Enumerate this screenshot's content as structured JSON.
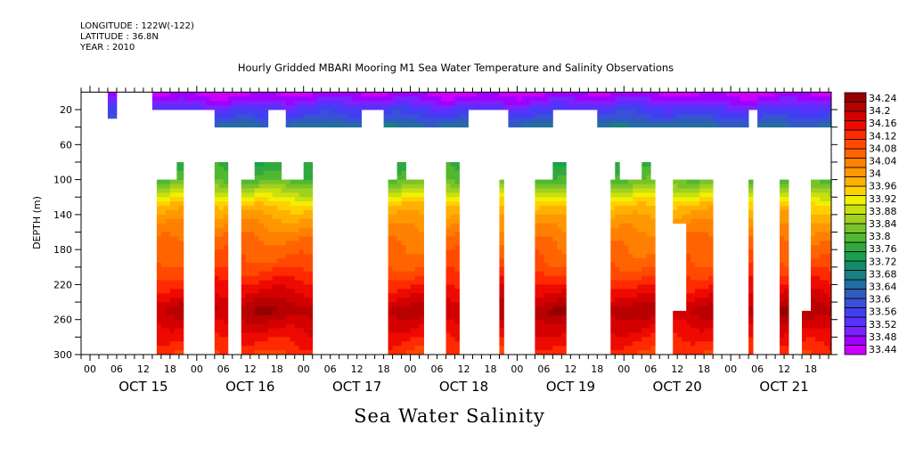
{
  "header": {
    "longitude": "LONGITUDE : 122W(-122)",
    "latitude": "LATITUDE : 36.8N",
    "year": "YEAR : 2010"
  },
  "chart_data": {
    "type": "heatmap",
    "title": "Hourly Gridded MBARI Mooring M1 Sea Water Temperature and Salinity Observations",
    "bottom_title": "Sea Water Salinity",
    "ylabel": "DEPTH (m)",
    "xlabel": "",
    "y_axis": {
      "range": [
        0,
        300
      ],
      "inverted": true,
      "ticks": [
        20,
        60,
        100,
        140,
        180,
        220,
        260,
        300
      ],
      "minor_ticks": [
        40,
        80,
        120,
        160,
        200,
        240,
        280
      ]
    },
    "x_axis": {
      "range_hours": [
        -2,
        166.6
      ],
      "start": "OCT 15 00",
      "hour_ticks": [
        "00",
        "06",
        "12",
        "18",
        "00",
        "06",
        "12",
        "18",
        "00",
        "06",
        "12",
        "18",
        "00",
        "06",
        "12",
        "18",
        "00",
        "06",
        "12",
        "18",
        "00",
        "06",
        "12",
        "18",
        "00",
        "06",
        "12",
        "18"
      ],
      "day_labels": [
        "OCT 15",
        "OCT 16",
        "OCT 17",
        "OCT 18",
        "OCT 19",
        "OCT 20",
        "OCT 21"
      ]
    },
    "colorbar": {
      "levels": [
        33.44,
        33.48,
        33.52,
        33.56,
        33.6,
        33.64,
        33.68,
        33.72,
        33.76,
        33.8,
        33.84,
        33.88,
        33.92,
        33.96,
        34,
        34.04,
        34.08,
        34.12,
        34.16,
        34.2,
        34.24
      ],
      "labels": [
        "34.24",
        "34.2",
        "34.16",
        "34.12",
        "34.08",
        "34.04",
        "34",
        "33.96",
        "33.92",
        "33.88",
        "33.84",
        "33.8",
        "33.76",
        "33.72",
        "33.68",
        "33.64",
        "33.6",
        "33.56",
        "33.52",
        "33.48",
        "33.44"
      ],
      "colors": [
        "#cc00ff",
        "#a000ff",
        "#7a22ff",
        "#5a30ff",
        "#4040f0",
        "#3a50d8",
        "#2f5cbe",
        "#226ea0",
        "#1a7f82",
        "#148a6a",
        "#18a050",
        "#30a840",
        "#50b830",
        "#78c428",
        "#a0d020",
        "#c8e010",
        "#f0f000",
        "#ffd000",
        "#ffb000",
        "#ff9800",
        "#ff8000",
        "#ff6400",
        "#ff4a00",
        "#ff2a00",
        "#ee0a00",
        "#d40000",
        "#b80000",
        "#960000"
      ]
    },
    "upper_segments_20m": [
      [
        4,
        6
      ],
      [
        14,
        166.6
      ]
    ],
    "upper_gaps_40m": [
      [
        14,
        28
      ],
      [
        40,
        44
      ],
      [
        61,
        66
      ],
      [
        85,
        94
      ],
      [
        104,
        114
      ],
      [
        148,
        150
      ]
    ],
    "lower_columns": [
      {
        "start": 15,
        "end": 21,
        "top_depth": 100,
        "notch": [
          19.5,
          21,
          80
        ]
      },
      {
        "start": 28,
        "end": 31,
        "top_depth": 80
      },
      {
        "start": 34,
        "end": 50,
        "top_depth": 100,
        "notch_list": [
          [
            37,
            43,
            80
          ],
          [
            48,
            50,
            80
          ]
        ]
      },
      {
        "start": 67,
        "end": 75,
        "top_depth": 100,
        "notch": [
          69,
          71,
          80
        ]
      },
      {
        "start": 80,
        "end": 83,
        "top_depth": 80
      },
      {
        "start": 92,
        "end": 93,
        "top_depth": 100
      },
      {
        "start": 100,
        "end": 107,
        "top_depth": 100,
        "notch": [
          104,
          107,
          80
        ]
      },
      {
        "start": 117,
        "end": 127,
        "top_depth": 100,
        "notch_list": [
          [
            118,
            119,
            80
          ],
          [
            124,
            126,
            80
          ]
        ]
      },
      {
        "start": 131,
        "end": 140,
        "top_depth": 100,
        "hole": [
          131,
          134,
          150,
          250
        ]
      },
      {
        "start": 148,
        "end": 149,
        "top_depth": 100
      },
      {
        "start": 155,
        "end": 157,
        "top_depth": 100
      },
      {
        "start": 160,
        "end": 166.6,
        "top_depth": 100,
        "hole": [
          160,
          162,
          100,
          250
        ]
      }
    ],
    "profile_note": "Salinity increases with depth: ~33.44-33.6 at 0-20 m, ~33.64-33.72 at 40 m, ~33.8 at 100 m, ~34.0 at 130 m, ~34.08 at 170 m, ~34.16 at 220 m, max ~34.24 near 250 m, ~34.16 at 300 m"
  }
}
